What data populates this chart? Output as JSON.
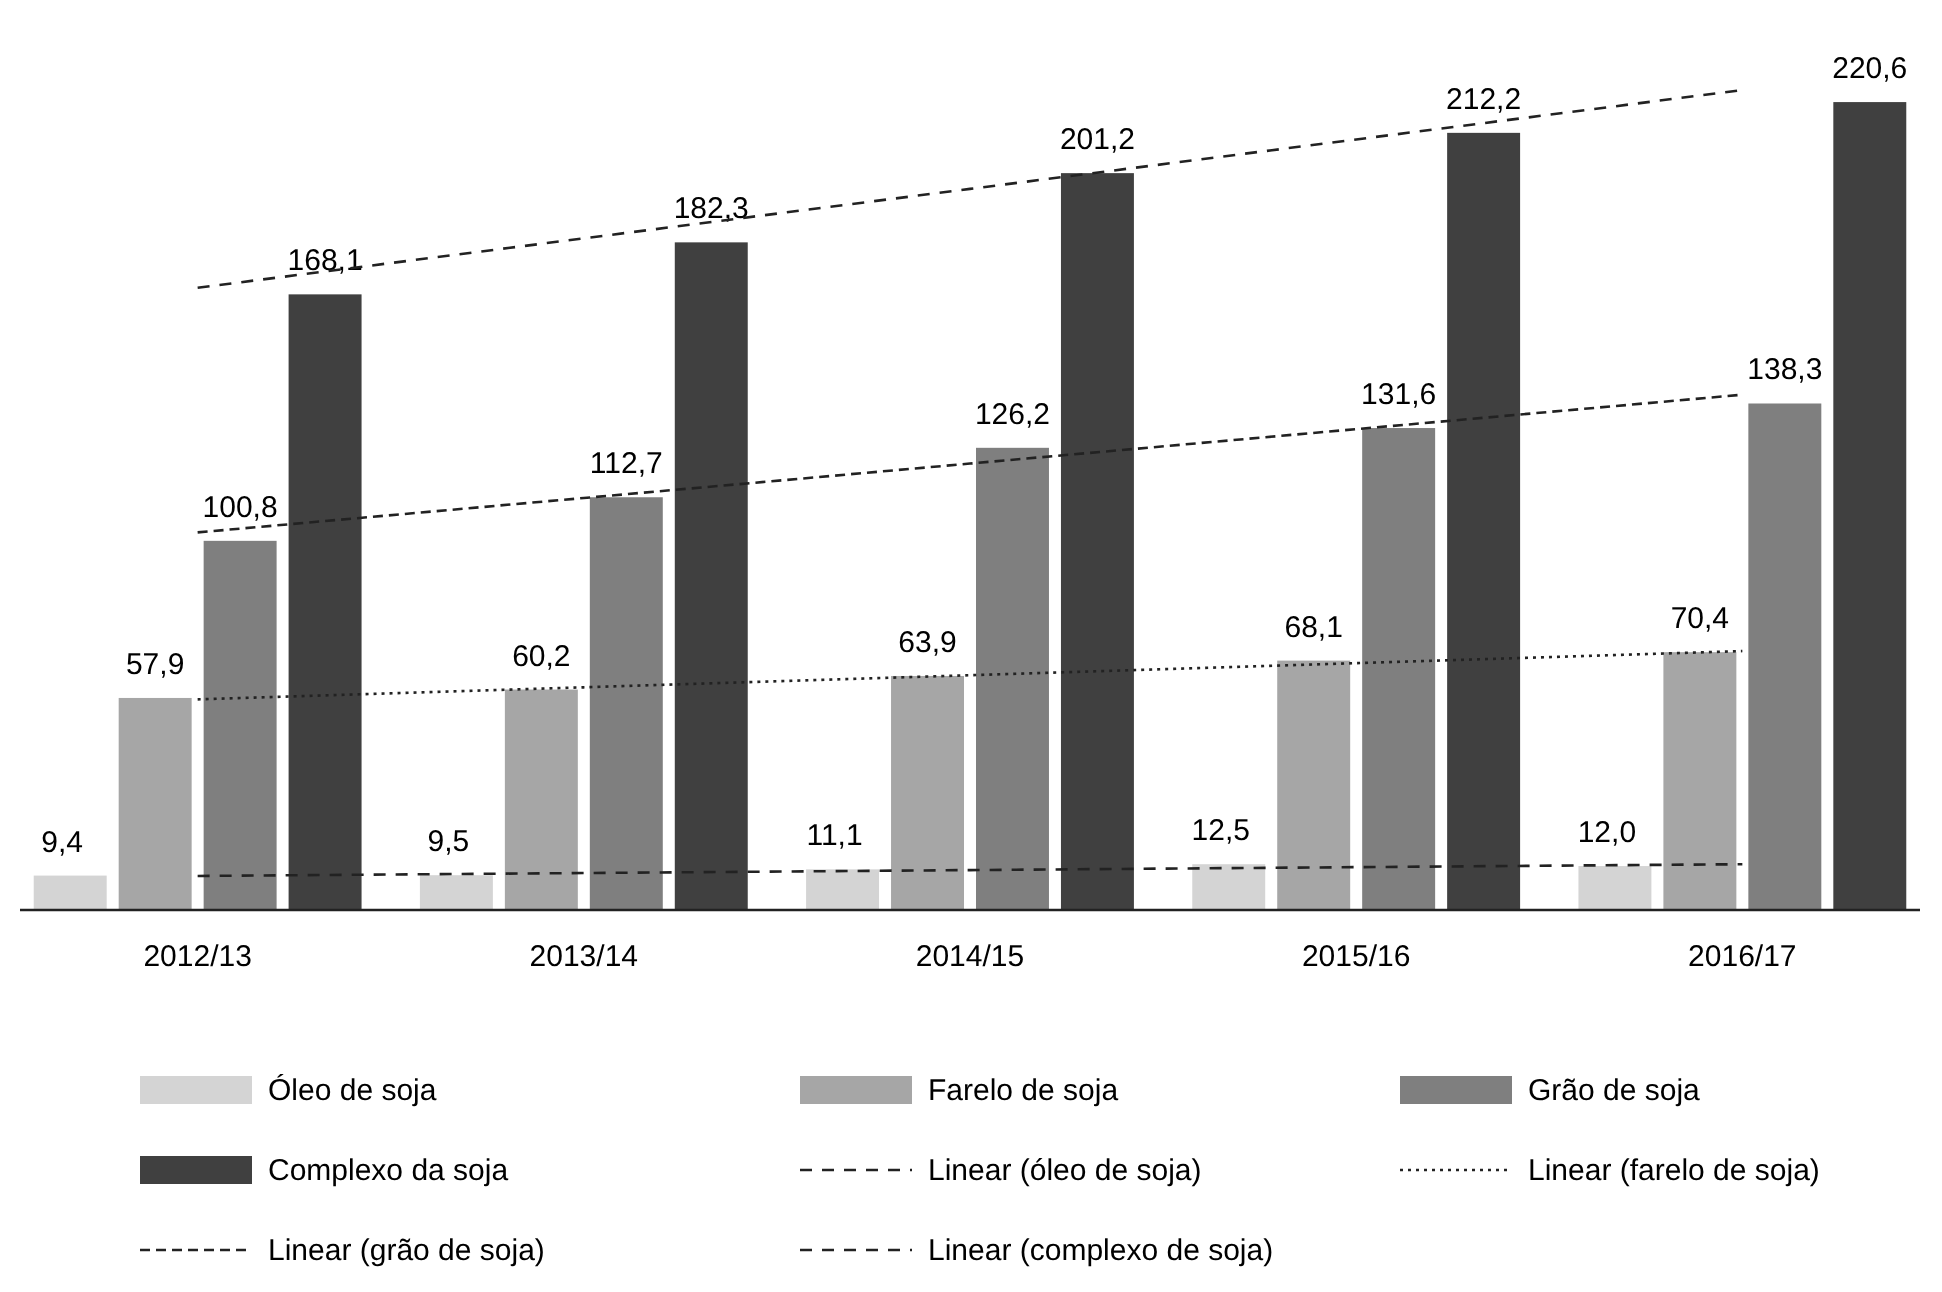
{
  "chart_data": {
    "type": "bar",
    "categories": [
      "2012/13",
      "2013/14",
      "2014/15",
      "2015/16",
      "2016/17"
    ],
    "tick_labels": "x",
    "legend": "bottom",
    "series": [
      {
        "name": "Óleo de soja",
        "color": "#d4d4d4",
        "values": [
          9.4,
          9.5,
          11.1,
          12.5,
          12.0
        ],
        "value_labels": [
          "9,4",
          "9,5",
          "11,1",
          "12,5",
          "12,0"
        ]
      },
      {
        "name": "Farelo de soja",
        "color": "#a6a6a6",
        "values": [
          57.9,
          60.2,
          63.9,
          68.1,
          70.4
        ],
        "value_labels": [
          "57,9",
          "60,2",
          "63,9",
          "68,1",
          "70,4"
        ]
      },
      {
        "name": "Grão de soja",
        "color": "#7f7f7f",
        "values": [
          100.8,
          112.7,
          126.2,
          131.6,
          138.3
        ],
        "value_labels": [
          "100,8",
          "112,7",
          "126,2",
          "131,6",
          "138,3"
        ]
      },
      {
        "name": "Complexo da soja",
        "color": "#404040",
        "values": [
          168.1,
          182.3,
          201.2,
          212.2,
          220.6
        ],
        "value_labels": [
          "168,1",
          "182,3",
          "201,2",
          "212,2",
          "220,6"
        ]
      },
      {
        "name": "Linear (óleo de soja)",
        "type": "line",
        "color": "#222222",
        "line_style": "dashed",
        "x": [
          "2012/13",
          "2013/14",
          "2014/15",
          "2015/16",
          "2016/17"
        ],
        "values": [
          9.3,
          10.1,
          10.9,
          11.7,
          12.5
        ]
      },
      {
        "name": "Linear (farelo de soja)",
        "type": "line",
        "color": "#222222",
        "line_style": "dotted",
        "x": [
          "2012/13",
          "2013/14",
          "2014/15",
          "2015/16",
          "2016/17"
        ],
        "values": [
          57.5,
          60.8,
          64.1,
          67.4,
          70.7
        ]
      },
      {
        "name": "Linear (grão de soja)",
        "type": "line",
        "color": "#222222",
        "line_style": "dashed",
        "x": [
          "2012/13",
          "2013/14",
          "2014/15",
          "2015/16",
          "2016/17"
        ],
        "values": [
          103.1,
          112.5,
          121.9,
          131.3,
          140.7
        ]
      },
      {
        "name": "Linear (complexo de soja)",
        "type": "line",
        "color": "#222222",
        "line_style": "dashed",
        "x": [
          "2012/13",
          "2013/14",
          "2014/15",
          "2015/16",
          "2016/17"
        ],
        "values": [
          169.9,
          183.4,
          196.9,
          210.4,
          223.9
        ]
      }
    ]
  }
}
